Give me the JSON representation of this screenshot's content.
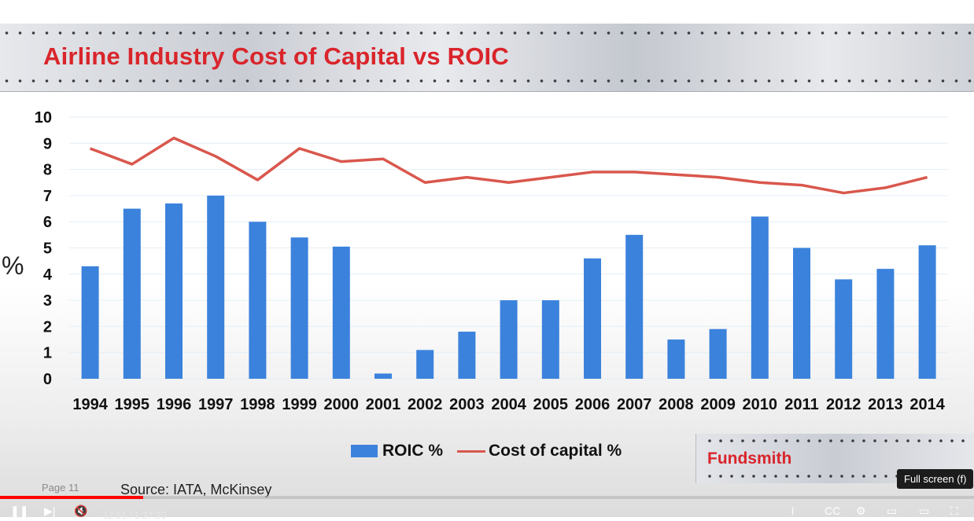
{
  "slide": {
    "title": "Airline Industry Cost of Capital vs ROIC",
    "y_unit_label": "%",
    "page_label": "Page 11",
    "source": "Source: IATA,  McKinsey",
    "logo_text": "Fundsmith"
  },
  "chart_data": {
    "type": "bar",
    "title": "Airline Industry Cost of Capital vs ROIC",
    "xlabel": "",
    "ylabel": "%",
    "ylim": [
      0,
      10
    ],
    "yticks": [
      0,
      1,
      2,
      3,
      4,
      5,
      6,
      7,
      8,
      9,
      10
    ],
    "grid": true,
    "legend_position": "bottom",
    "categories": [
      "1994",
      "1995",
      "1996",
      "1997",
      "1998",
      "1999",
      "2000",
      "2001",
      "2002",
      "2003",
      "2004",
      "2005",
      "2006",
      "2007",
      "2008",
      "2009",
      "2010",
      "2011",
      "2012",
      "2013",
      "2014"
    ],
    "series": [
      {
        "name": "ROIC %",
        "type": "bar",
        "color": "#3b82dc",
        "values": [
          4.3,
          6.5,
          6.7,
          7.0,
          6.0,
          5.4,
          5.05,
          0.2,
          1.1,
          1.8,
          3.0,
          3.0,
          4.6,
          5.5,
          1.5,
          1.9,
          6.2,
          5.0,
          3.8,
          4.2,
          5.1
        ]
      },
      {
        "name": "Cost of capital %",
        "type": "line",
        "color": "#d9574d",
        "values": [
          8.8,
          8.2,
          9.2,
          8.5,
          7.6,
          8.8,
          8.3,
          8.4,
          7.5,
          7.7,
          7.5,
          7.7,
          7.9,
          7.9,
          7.8,
          7.7,
          7.5,
          7.4,
          7.1,
          7.3,
          7.7
        ]
      }
    ]
  },
  "player": {
    "time": "12:51 / 1:27:20",
    "progress_fraction": 0.147,
    "tooltip": "Full screen (f)"
  }
}
